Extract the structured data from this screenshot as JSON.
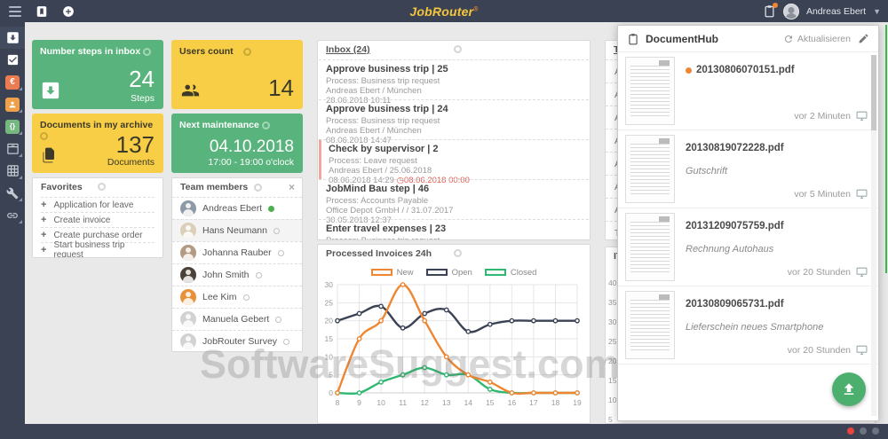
{
  "topbar": {
    "logo_text": "JobRouter",
    "logo_mark": "®",
    "user_name": "Andreas Ebert",
    "icons": [
      "menu-icon",
      "bookmark-icon",
      "add-circle-icon",
      "clipboard-icon",
      "chevron-down-icon"
    ]
  },
  "sidebar": {
    "icons": [
      "inbox-tray-icon",
      "tasks-check-icon",
      "invoices-euro-icon",
      "contacts-icon",
      "processes-braces-icon",
      "archive-box-icon",
      "tables-grid-icon",
      "tools-wrench-icon",
      "links-chain-icon"
    ]
  },
  "cards": {
    "steps": {
      "title": "Number steps in inbox",
      "value": "24",
      "unit": "Steps"
    },
    "archive": {
      "title": "Documents in my archive",
      "value": "137",
      "unit": "Documents"
    },
    "users": {
      "title": "Users count",
      "value": "14"
    },
    "maintenance": {
      "title": "Next maintenance",
      "date": "04.10.2018",
      "time": "17:00 - 19:00 o'clock"
    }
  },
  "favorites": {
    "title": "Favorites",
    "items": [
      "Application for leave",
      "Create invoice",
      "Create purchase order",
      "Start business trip request"
    ]
  },
  "team": {
    "title": "Team members",
    "members": [
      {
        "name": "Andreas Ebert",
        "online": true,
        "avatar_color": "#8d99a6",
        "highlight": false
      },
      {
        "name": "Hans Neumann",
        "online": false,
        "avatar_color": "#dccfb9",
        "highlight": true
      },
      {
        "name": "Johanna Rauber",
        "online": false,
        "avatar_color": "#b59a83",
        "highlight": false
      },
      {
        "name": "John Smith",
        "online": false,
        "avatar_color": "#4a4238",
        "highlight": false
      },
      {
        "name": "Lee Kim",
        "online": false,
        "avatar_color": "#e8913a",
        "highlight": false
      },
      {
        "name": "Manuela Gebert",
        "online": false,
        "avatar_color": "#d2d2d2",
        "highlight": false
      },
      {
        "name": "JobRouter Survey",
        "online": false,
        "avatar_color": "#d2d2d2",
        "highlight": false
      }
    ]
  },
  "inbox": {
    "title": "Inbox (24)",
    "items": [
      {
        "title": "Approve business trip | 25",
        "process": "Process: Business trip request",
        "info": "Andreas Ebert / München",
        "date": "28.06.2018 10:11",
        "due": "",
        "urgent": false
      },
      {
        "title": "Approve business trip | 24",
        "process": "Process: Business trip request",
        "info": "Andreas Ebert / München",
        "date": "08.06.2018 14:47",
        "due": "",
        "urgent": false
      },
      {
        "title": "Check by supervisor | 2",
        "process": "Process: Leave request",
        "info": "Andreas Ebert / 25.06.2018",
        "date": "08.06.2018 14:29",
        "due": "08.06.2018 00:00",
        "urgent": true
      },
      {
        "title": "JobMind Bau step | 46",
        "process": "Process: Accounts Payable",
        "info": "Office Depot GmbH / / 31.07.2017",
        "date": "30.05.2018 12:37",
        "due": "",
        "urgent": false
      },
      {
        "title": "Enter travel expenses | 23",
        "process": "Process: Business trip request",
        "info": "Andreas Ebert / München",
        "date": "",
        "due": "",
        "urgent": false
      }
    ]
  },
  "chart_data": {
    "type": "line",
    "title": "Processed Invoices 24h",
    "x": [
      8,
      9,
      10,
      11,
      12,
      13,
      14,
      15,
      16,
      17,
      18,
      19
    ],
    "series": [
      {
        "name": "New",
        "color": "#ef8632",
        "values": [
          0,
          15,
          20,
          30,
          20,
          10,
          5,
          3,
          0,
          0,
          0,
          0
        ]
      },
      {
        "name": "Open",
        "color": "#3a4254",
        "values": [
          20,
          22,
          24,
          18,
          22,
          23,
          17,
          19,
          20,
          20,
          20,
          20
        ]
      },
      {
        "name": "Closed",
        "color": "#2eb872",
        "values": [
          0,
          0,
          3,
          5,
          7,
          5,
          5,
          1,
          0,
          0,
          0,
          0
        ]
      }
    ],
    "xlabel": "",
    "ylabel": "",
    "ylim": [
      0,
      30
    ],
    "yticks": [
      0,
      5,
      10,
      15,
      20,
      25,
      30
    ],
    "grid": true,
    "legend_position": "top"
  },
  "hidden_panel": {
    "title": "The",
    "items": [
      "Arc",
      "Arc",
      "Arc",
      "Arc",
      "Arc",
      "Arc",
      "Arc",
      "Tra"
    ]
  },
  "it_panel": {
    "title": "IT F",
    "yticks": [
      40,
      35,
      30,
      25,
      20,
      15,
      10,
      5
    ]
  },
  "dochub": {
    "title": "DocumentHub",
    "refresh_label": "Aktualisieren",
    "documents": [
      {
        "name": "20130806070151.pdf",
        "note": "",
        "time": "vor 2 Minuten",
        "new": true
      },
      {
        "name": "20130819072228.pdf",
        "note": "Gutschrift",
        "time": "vor 5 Minuten",
        "new": false
      },
      {
        "name": "20131209075759.pdf",
        "note": "Rechnung Autohaus",
        "time": "vor 20 Stunden",
        "new": false
      },
      {
        "name": "20130809065731.pdf",
        "note": "Lieferschein neues Smartphone",
        "time": "vor 20 Stunden",
        "new": false
      }
    ]
  },
  "watermark": {
    "text": "SoftwareSuggest.com"
  },
  "colors": {
    "navy": "#3a4254",
    "card_green": "#58b47c",
    "card_yellow": "#f7ce45",
    "accent_orange": "#ef8632",
    "euro_icon_bg": "#ed7b52",
    "contact_icon_bg": "#efa04b",
    "braces_icon_bg": "#76b77f",
    "urgent_red": "#e25950",
    "fab_green": "#4caf6e",
    "online_green": "#4caf50",
    "status_dot_red": "#e8453c"
  }
}
